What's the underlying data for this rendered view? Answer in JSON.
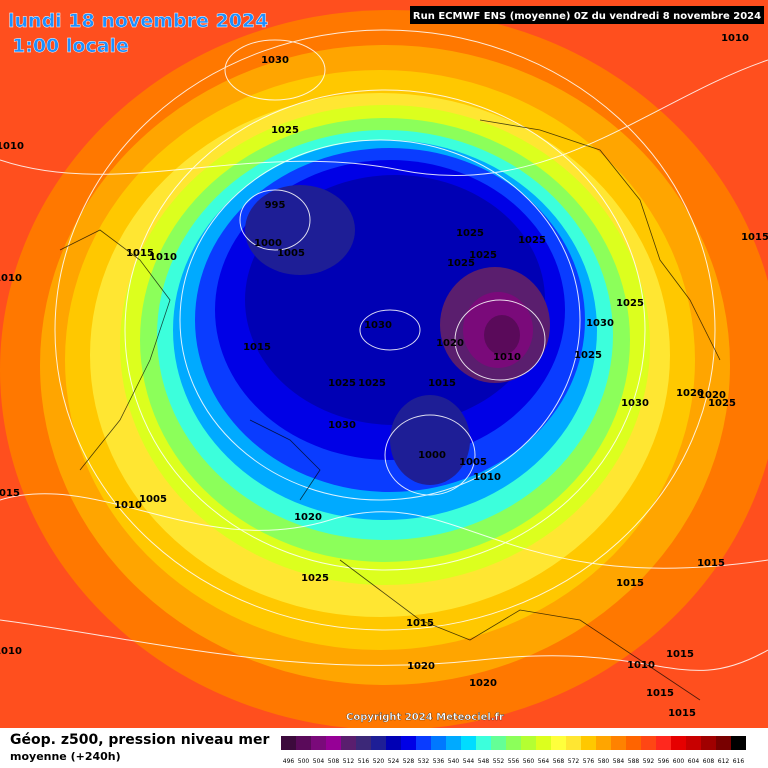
{
  "header": {
    "date": "lundi 18 novembre 2024",
    "time": "1:00 locale",
    "run": "Run ECMWF ENS (moyenne) 0Z du vendredi 8 novembre 2024"
  },
  "map": {
    "isobar_labels": [
      1010,
      1030,
      1025,
      1010,
      995,
      1000,
      1005,
      1015,
      1010,
      1010,
      1025,
      1025,
      1025,
      1025,
      1015,
      1025,
      1030,
      1030,
      1020,
      1010,
      1025,
      1015,
      1025,
      1025,
      1015,
      1020,
      1020,
      1025,
      1030,
      1030,
      1000,
      1005,
      1010,
      1015,
      1010,
      1005,
      1020,
      1025,
      1015,
      1015,
      1015,
      1010,
      1015,
      1010,
      1020,
      1020,
      1015,
      1015
    ],
    "copyright": "Copyright 2024 Meteociel.fr"
  },
  "footer": {
    "title": "Géop. z500, pression niveau mer",
    "subtitle": "moyenne  (+240h)",
    "legend": {
      "levels": [
        496,
        500,
        504,
        508,
        512,
        516,
        520,
        524,
        528,
        532,
        536,
        540,
        544,
        548,
        552,
        556,
        560,
        564,
        568,
        572,
        576,
        580,
        584,
        588,
        592,
        596,
        600,
        604,
        608,
        612,
        616
      ],
      "colors": [
        "#3c0a3c",
        "#5a0a5a",
        "#7a0a7a",
        "#960096",
        "#5a1e6e",
        "#3c2878",
        "#1e1e96",
        "#0000b4",
        "#0000e6",
        "#0a3cff",
        "#0078ff",
        "#00aaff",
        "#00dcff",
        "#3cffdc",
        "#64ff96",
        "#8cff5a",
        "#b4ff32",
        "#dcff1e",
        "#ffff3c",
        "#ffe632",
        "#ffc800",
        "#ffa500",
        "#ff8200",
        "#ff6400",
        "#ff4614",
        "#ff281e",
        "#e60000",
        "#c80000",
        "#a00000",
        "#780000",
        "#000000"
      ]
    }
  }
}
